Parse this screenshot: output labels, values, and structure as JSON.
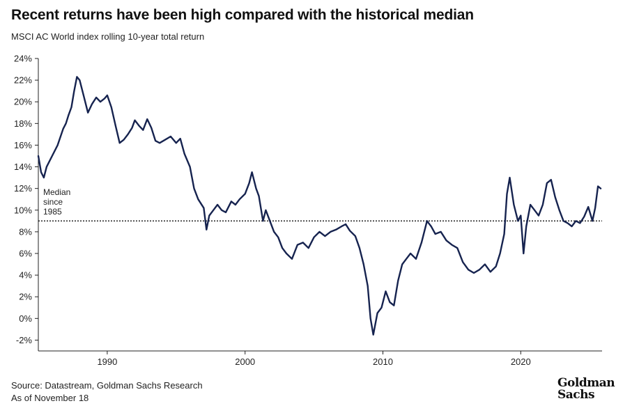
{
  "header": {
    "title": "Recent returns have been high compared with the historical median",
    "subtitle": "MSCI AC World index rolling 10-year total return"
  },
  "footer": {
    "source": "Source: Datastream, Goldman Sachs Research",
    "as_of": "As of November 18"
  },
  "logo": {
    "line1": "Goldman",
    "line2": "Sachs"
  },
  "colors": {
    "series": "#16234f",
    "axis": "#222222"
  },
  "chart_data": {
    "type": "line",
    "title": "Recent returns have been high compared with the historical median",
    "subtitle": "MSCI AC World index rolling 10-year total return",
    "xlabel": "",
    "ylabel": "",
    "xlim": [
      1985,
      2025.9
    ],
    "ylim": [
      -3,
      24
    ],
    "y_ticks": [
      -2,
      0,
      2,
      4,
      6,
      8,
      10,
      12,
      14,
      16,
      18,
      20,
      22,
      24
    ],
    "y_tick_labels": [
      "-2%",
      "0%",
      "2%",
      "4%",
      "6%",
      "8%",
      "10%",
      "12%",
      "14%",
      "16%",
      "18%",
      "20%",
      "22%",
      "24%"
    ],
    "x_ticks": [
      1990,
      2000,
      2010,
      2020
    ],
    "x_tick_labels": [
      "1990",
      "2000",
      "2010",
      "2020"
    ],
    "grid": false,
    "median": {
      "value": 9.0,
      "label_lines": [
        "Median",
        "since",
        "1985"
      ]
    },
    "series": [
      {
        "x": [
          1985.0,
          1985.2,
          1985.4,
          1985.6,
          1986.0,
          1986.4,
          1986.8,
          1987.0,
          1987.2,
          1987.4,
          1987.6,
          1987.8,
          1988.0,
          1988.3,
          1988.6,
          1988.9,
          1989.2,
          1989.5,
          1989.8,
          1990.0,
          1990.3,
          1990.6,
          1990.9,
          1991.2,
          1991.5,
          1991.8,
          1992.0,
          1992.3,
          1992.6,
          1992.9,
          1993.2,
          1993.5,
          1993.8,
          1994.2,
          1994.6,
          1995.0,
          1995.3,
          1995.6,
          1996.0,
          1996.3,
          1996.6,
          1997.0,
          1997.2,
          1997.4,
          1997.7,
          1998.0,
          1998.3,
          1998.6,
          1999.0,
          1999.3,
          1999.6,
          2000.0,
          2000.3,
          2000.5,
          2000.8,
          2001.0,
          2001.3,
          2001.5,
          2001.8,
          2002.1,
          2002.4,
          2002.7,
          2003.0,
          2003.4,
          2003.8,
          2004.2,
          2004.6,
          2005.0,
          2005.4,
          2005.8,
          2006.2,
          2006.6,
          2007.0,
          2007.3,
          2007.6,
          2008.0,
          2008.3,
          2008.6,
          2008.9,
          2009.1,
          2009.3,
          2009.6,
          2009.9,
          2010.2,
          2010.5,
          2010.8,
          2011.1,
          2011.4,
          2011.7,
          2012.0,
          2012.4,
          2012.8,
          2013.2,
          2013.5,
          2013.8,
          2014.2,
          2014.6,
          2015.0,
          2015.4,
          2015.8,
          2016.2,
          2016.6,
          2017.0,
          2017.4,
          2017.8,
          2018.2,
          2018.5,
          2018.8,
          2019.0,
          2019.2,
          2019.5,
          2019.8,
          2020.0,
          2020.2,
          2020.4,
          2020.7,
          2021.0,
          2021.3,
          2021.6,
          2021.9,
          2022.2,
          2022.5,
          2022.8,
          2023.1,
          2023.4,
          2023.7,
          2024.0,
          2024.3,
          2024.6,
          2024.9,
          2025.2,
          2025.4,
          2025.6,
          2025.8
        ],
        "values": [
          15.0,
          13.5,
          13.0,
          14.0,
          15.0,
          16.0,
          17.5,
          18.0,
          18.8,
          19.5,
          21.0,
          22.3,
          22.0,
          20.5,
          19.0,
          19.8,
          20.4,
          20.0,
          20.3,
          20.6,
          19.5,
          17.8,
          16.2,
          16.5,
          17.0,
          17.6,
          18.3,
          17.8,
          17.4,
          18.4,
          17.6,
          16.4,
          16.2,
          16.5,
          16.8,
          16.2,
          16.6,
          15.2,
          14.0,
          12.0,
          11.0,
          10.2,
          8.2,
          9.5,
          10.0,
          10.5,
          10.0,
          9.8,
          10.8,
          10.5,
          11.0,
          11.5,
          12.5,
          13.5,
          12.0,
          11.3,
          9.0,
          10.0,
          9.0,
          8.0,
          7.5,
          6.5,
          6.0,
          5.5,
          6.8,
          7.0,
          6.5,
          7.5,
          8.0,
          7.6,
          8.0,
          8.2,
          8.5,
          8.7,
          8.1,
          7.6,
          6.5,
          5.0,
          3.0,
          0.0,
          -1.5,
          0.5,
          1.0,
          2.5,
          1.5,
          1.2,
          3.5,
          5.0,
          5.5,
          6.0,
          5.5,
          7.0,
          9.0,
          8.5,
          7.8,
          8.0,
          7.2,
          6.8,
          6.5,
          5.2,
          4.5,
          4.2,
          4.5,
          5.0,
          4.3,
          4.8,
          6.0,
          7.8,
          11.5,
          13.0,
          10.5,
          9.0,
          9.5,
          6.0,
          8.5,
          10.5,
          10.0,
          9.5,
          10.5,
          12.5,
          12.8,
          11.2,
          10.0,
          9.0,
          8.8,
          8.5,
          9.0,
          8.8,
          9.4,
          10.3,
          9.0,
          10.2,
          12.2,
          12.0
        ]
      }
    ]
  }
}
